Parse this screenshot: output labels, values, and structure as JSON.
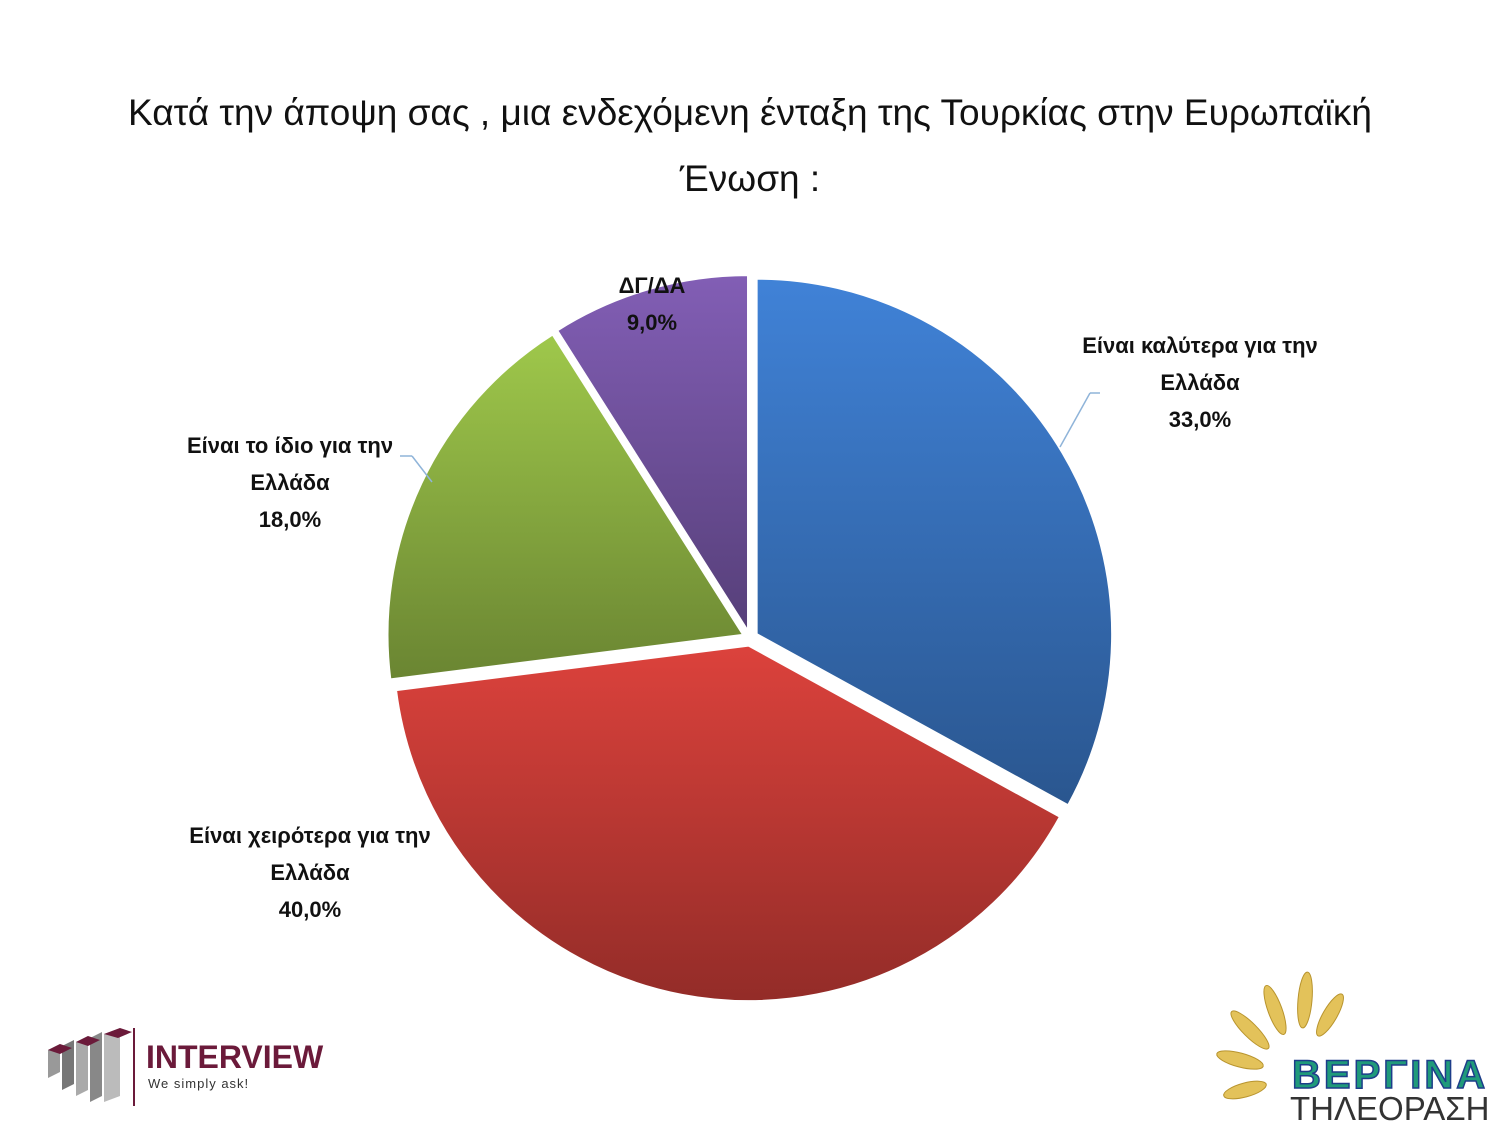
{
  "chart_data": {
    "type": "pie",
    "title": "Κατά την άποψη σας , μια ενδεχόμενη ένταξη της Τουρκίας στην Ευρωπαϊκή Ένωση :",
    "categories": [
      "Είναι καλύτερα για την Ελλάδα",
      "Είναι χειρότερα για την Ελλάδα",
      "Είναι το ίδιο για την Ελλάδα",
      "ΔΓ/ΔΑ"
    ],
    "values": [
      33,
      40,
      18,
      9
    ],
    "value_labels": [
      "33,0%",
      "40,0%",
      "18,0%",
      "9,0%"
    ],
    "colors": [
      "#3b78c7",
      "#cc3d38",
      "#93b945",
      "#7857a8"
    ]
  },
  "logos": {
    "interview": "INTERVIEW",
    "interview_tagline": "We simply ask!",
    "vergina": "ΒΕΡΓΙΝΑ",
    "vergina_sub": "ΤΗΛΕΟΡΑΣΗ"
  }
}
